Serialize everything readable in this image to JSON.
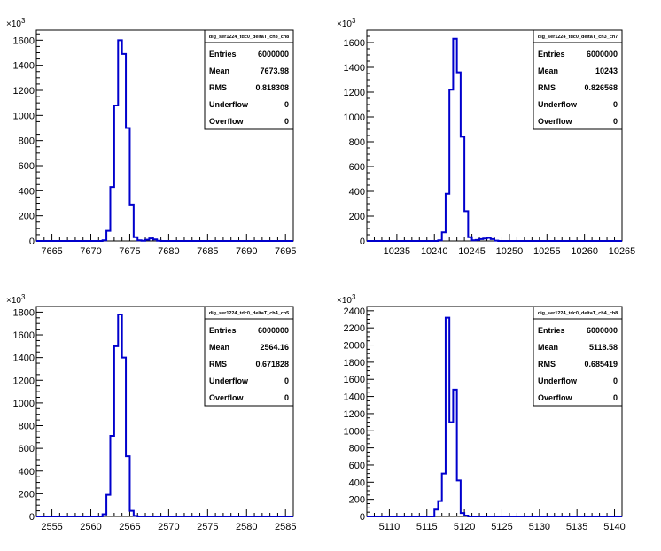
{
  "chart_data": [
    {
      "type": "histogram",
      "title": "",
      "stats": {
        "name": "dig_ser1224_tdc0_deltaT_ch3_ch8",
        "rows": [
          {
            "label": "Entries",
            "value": "6000000"
          },
          {
            "label": "Mean",
            "value": "7673.98"
          },
          {
            "label": "RMS",
            "value": "0.818308"
          },
          {
            "label": "Underflow",
            "value": "0"
          },
          {
            "label": "Overflow",
            "value": "0"
          }
        ]
      },
      "xlim": [
        7663,
        7696
      ],
      "ylim": [
        0,
        1680
      ],
      "xticks": [
        7665,
        7670,
        7675,
        7680,
        7685,
        7690,
        7695
      ],
      "yticks": [
        0,
        200,
        400,
        600,
        800,
        1000,
        1200,
        1400,
        1600
      ],
      "y_exponent": "×10³",
      "bin_width": 0.5,
      "bins": [
        [
          7671.5,
          5
        ],
        [
          7672.0,
          80
        ],
        [
          7672.5,
          430
        ],
        [
          7673.0,
          1080
        ],
        [
          7673.5,
          1600
        ],
        [
          7674.0,
          1490
        ],
        [
          7674.5,
          900
        ],
        [
          7675.0,
          290
        ],
        [
          7675.5,
          30
        ],
        [
          7676.0,
          5
        ],
        [
          7676.5,
          2
        ],
        [
          7677.0,
          10
        ],
        [
          7677.5,
          20
        ],
        [
          7678.0,
          12
        ],
        [
          7678.5,
          2
        ]
      ],
      "color": "#0000cc"
    },
    {
      "type": "histogram",
      "title": "",
      "stats": {
        "name": "dig_ser1224_tdc0_deltaT_ch3_ch7",
        "rows": [
          {
            "label": "Entries",
            "value": "6000000"
          },
          {
            "label": "Mean",
            "value": "10243"
          },
          {
            "label": "RMS",
            "value": "0.826568"
          },
          {
            "label": "Underflow",
            "value": "0"
          },
          {
            "label": "Overflow",
            "value": "0"
          }
        ]
      },
      "xlim": [
        10231,
        10265
      ],
      "ylim": [
        0,
        1700
      ],
      "xticks": [
        10235,
        10240,
        10245,
        10250,
        10255,
        10260,
        10265
      ],
      "yticks": [
        0,
        200,
        400,
        600,
        800,
        1000,
        1200,
        1400,
        1600
      ],
      "y_exponent": "×10³",
      "bin_width": 0.5,
      "bins": [
        [
          10240.5,
          5
        ],
        [
          10241.0,
          70
        ],
        [
          10241.5,
          380
        ],
        [
          10242.0,
          1220
        ],
        [
          10242.5,
          1630
        ],
        [
          10243.0,
          1360
        ],
        [
          10243.5,
          840
        ],
        [
          10244.0,
          240
        ],
        [
          10244.5,
          30
        ],
        [
          10245.0,
          5
        ],
        [
          10245.5,
          8
        ],
        [
          10246.0,
          15
        ],
        [
          10246.5,
          20
        ],
        [
          10247.0,
          25
        ],
        [
          10247.5,
          15
        ],
        [
          10248.0,
          3
        ]
      ],
      "color": "#0000cc"
    },
    {
      "type": "histogram",
      "title": "",
      "stats": {
        "name": "dig_ser1224_tdc0_deltaT_ch4_ch5",
        "rows": [
          {
            "label": "Entries",
            "value": "6000000"
          },
          {
            "label": "Mean",
            "value": "2564.16"
          },
          {
            "label": "RMS",
            "value": "0.671828"
          },
          {
            "label": "Underflow",
            "value": "0"
          },
          {
            "label": "Overflow",
            "value": "0"
          }
        ]
      },
      "xlim": [
        2553,
        2586
      ],
      "ylim": [
        0,
        1850
      ],
      "xticks": [
        2555,
        2560,
        2565,
        2570,
        2575,
        2580,
        2585
      ],
      "yticks": [
        0,
        200,
        400,
        600,
        800,
        1000,
        1200,
        1400,
        1600,
        1800
      ],
      "y_exponent": "×10³",
      "bin_width": 0.5,
      "bins": [
        [
          2561.5,
          20
        ],
        [
          2562.0,
          190
        ],
        [
          2562.5,
          710
        ],
        [
          2563.0,
          1500
        ],
        [
          2563.5,
          1780
        ],
        [
          2564.0,
          1400
        ],
        [
          2564.5,
          530
        ],
        [
          2565.0,
          50
        ],
        [
          2565.5,
          5
        ]
      ],
      "color": "#0000cc"
    },
    {
      "type": "histogram",
      "title": "",
      "stats": {
        "name": "dig_ser1224_tdc0_deltaT_ch4_ch8",
        "rows": [
          {
            "label": "Entries",
            "value": "6000000"
          },
          {
            "label": "Mean",
            "value": "5118.58"
          },
          {
            "label": "RMS",
            "value": "0.685419"
          },
          {
            "label": "Underflow",
            "value": "0"
          },
          {
            "label": "Overflow",
            "value": "0"
          }
        ]
      },
      "xlim": [
        5107,
        5141
      ],
      "ylim": [
        0,
        2450
      ],
      "xticks": [
        5110,
        5115,
        5120,
        5125,
        5130,
        5135,
        5140
      ],
      "yticks": [
        0,
        200,
        400,
        600,
        800,
        1000,
        1200,
        1400,
        1600,
        1800,
        2000,
        2200,
        2400
      ],
      "y_exponent": "×10³",
      "bin_width": 0.5,
      "bins": [
        [
          5116.0,
          80
        ],
        [
          5116.5,
          180
        ],
        [
          5117.0,
          500
        ],
        [
          5117.5,
          2320
        ],
        [
          5118.0,
          1100
        ],
        [
          5118.5,
          1480
        ],
        [
          5119.0,
          420
        ],
        [
          5119.5,
          40
        ],
        [
          5120.0,
          10
        ]
      ],
      "color": "#0000cc"
    }
  ]
}
